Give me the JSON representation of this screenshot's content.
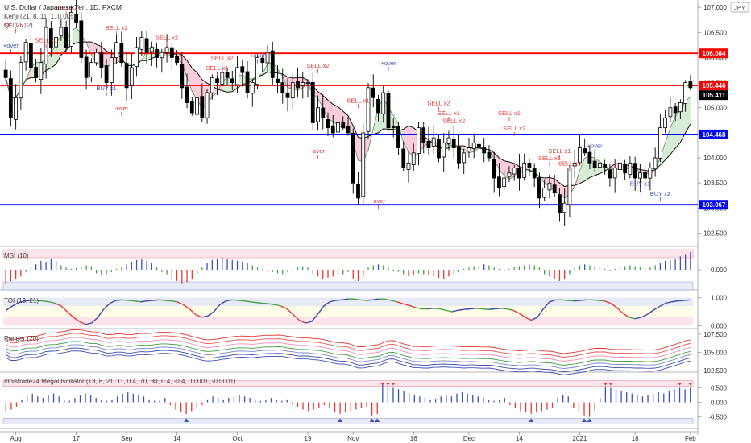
{
  "header": {
    "symbol_line": "U.S. Dollar / Japanese Yen, 1D, FXCM",
    "indicator_1": "Kenji (21, 8, 11, 1, 0.005)",
    "indicator_2": "QL (20, 2)",
    "currency_badge": "JPY"
  },
  "colors": {
    "up_candle": "#ffffff",
    "down_candle": "#000000",
    "resistance": "#ff0000",
    "support": "#0000ff",
    "sell_text": "#e53935",
    "buy_text": "#3f51b5",
    "price_badge": "#000000"
  },
  "chart_data": [
    {
      "type": "candlestick",
      "title": "U.S. Dollar / Japanese Yen, 1D, FXCM",
      "ylim": [
        102.3,
        107.05
      ],
      "y_ticks": [
        "107.000",
        "106.500",
        "106.000",
        "105.500",
        "105.000",
        "104.500",
        "104.000",
        "103.500",
        "103.000",
        "102.500"
      ],
      "x_ticks": [
        {
          "label": "Aug",
          "i": 2
        },
        {
          "label": "17",
          "i": 14
        },
        {
          "label": "Sep",
          "i": 24
        },
        {
          "label": "14",
          "i": 34
        },
        {
          "label": "Oct",
          "i": 46
        },
        {
          "label": "19",
          "i": 60
        },
        {
          "label": "Nov",
          "i": 69
        },
        {
          "label": "16",
          "i": 81
        },
        {
          "label": "Dec",
          "i": 92
        },
        {
          "label": "14",
          "i": 102
        },
        {
          "label": "2021",
          "i": 114
        },
        {
          "label": "18",
          "i": 125
        },
        {
          "label": "Feb",
          "i": 136
        }
      ],
      "horizontal_levels": [
        {
          "value": 106.084,
          "label": "106.084",
          "color": "#ff0000"
        },
        {
          "value": 105.446,
          "label": "105.446",
          "color": "#ff0000"
        },
        {
          "value": 104.468,
          "label": "104.468",
          "color": "#0000ff"
        },
        {
          "value": 103.067,
          "label": "103.067",
          "color": "#0000ff"
        }
      ],
      "last_price": "105.411",
      "closes": [
        105.6,
        104.8,
        105.2,
        105.9,
        106.3,
        105.8,
        105.6,
        105.9,
        106.6,
        106.2,
        106.4,
        106.6,
        106.2,
        106.9,
        106.7,
        106.0,
        105.6,
        105.9,
        106.1,
        105.8,
        105.5,
        106.0,
        106.3,
        105.9,
        105.4,
        105.8,
        106.2,
        106.4,
        106.1,
        106.2,
        106.0,
        106.1,
        106.2,
        106.0,
        105.9,
        105.4,
        105.1,
        104.9,
        105.2,
        104.8,
        105.3,
        105.6,
        105.5,
        105.7,
        105.6,
        105.5,
        105.8,
        105.7,
        105.3,
        105.5,
        106.0,
        105.9,
        106.1,
        105.6,
        105.5,
        105.3,
        105.2,
        105.5,
        105.4,
        105.5,
        105.5,
        104.7,
        105.0,
        104.8,
        104.6,
        104.5,
        104.7,
        104.6,
        104.5,
        103.5,
        103.2,
        104.5,
        105.4,
        105.2,
        104.9,
        105.3,
        104.6,
        104.6,
        104.2,
        103.8,
        103.9,
        104.1,
        104.6,
        104.3,
        104.2,
        104.4,
        104.0,
        104.3,
        104.4,
        104.2,
        103.9,
        104.1,
        104.2,
        104.3,
        104.2,
        104.1,
        104.0,
        103.6,
        103.4,
        103.6,
        103.7,
        103.8,
        103.6,
        103.9,
        103.8,
        103.6,
        103.2,
        103.4,
        103.5,
        103.3,
        102.9,
        103.1,
        103.8,
        103.9,
        104.2,
        104.1,
        103.9,
        103.8,
        103.9,
        103.8,
        103.6,
        103.8,
        103.9,
        103.7,
        103.9,
        103.6,
        103.7,
        103.6,
        103.8,
        104.0,
        104.6,
        104.8,
        105.0,
        104.9,
        105.1,
        105.5,
        105.4
      ]
    },
    {
      "type": "bar",
      "title": "MSI (10)",
      "ylim": [
        -0.45,
        0.45
      ],
      "y_ticks": [
        "0.000"
      ],
      "values": [
        -0.3,
        -0.25,
        -0.2,
        -0.15,
        -0.05,
        0.05,
        0.12,
        0.2,
        0.18,
        0.25,
        0.2,
        0.1,
        0.05,
        0.02,
        0.04,
        0.06,
        0.1,
        0.08,
        -0.08,
        -0.12,
        -0.1,
        -0.05,
        0.02,
        0.05,
        0.12,
        0.18,
        0.22,
        0.25,
        0.2,
        0.15,
        0.05,
        -0.05,
        -0.1,
        -0.2,
        -0.25,
        -0.3,
        -0.28,
        -0.2,
        -0.1,
        0.05,
        0.15,
        0.22,
        0.25,
        0.28,
        0.25,
        0.22,
        0.2,
        0.18,
        0.15,
        0.1,
        0.05,
        0.02,
        -0.02,
        -0.05,
        -0.08,
        -0.1,
        -0.05,
        0.02,
        0.05,
        0.08,
        0.05,
        -0.1,
        -0.15,
        -0.2,
        -0.18,
        -0.15,
        -0.12,
        -0.1,
        -0.05,
        -0.2,
        -0.25,
        -0.15,
        0.05,
        0.1,
        0.12,
        0.1,
        0.05,
        -0.02,
        -0.05,
        -0.1,
        -0.15,
        -0.12,
        -0.08,
        -0.1,
        -0.12,
        -0.15,
        -0.18,
        -0.2,
        -0.15,
        -0.1,
        -0.05,
        0.02,
        0.05,
        0.08,
        0.1,
        0.12,
        0.1,
        0.05,
        0.02,
        -0.02,
        0.02,
        0.05,
        0.08,
        0.1,
        0.12,
        0.1,
        0.05,
        -0.1,
        -0.15,
        -0.2,
        -0.25,
        -0.2,
        -0.1,
        0.05,
        0.1,
        0.12,
        0.1,
        0.08,
        0.05,
        0.02,
        -0.02,
        0.02,
        0.05,
        0.08,
        0.1,
        0.08,
        0.05,
        0.02,
        0.05,
        0.1,
        0.15,
        0.2,
        0.22,
        0.25,
        0.3,
        0.35,
        0.4
      ]
    },
    {
      "type": "line",
      "title": "TOI (13, 21)",
      "ylim": [
        -0.1,
        1.1
      ],
      "y_ticks": [
        "1.000",
        "0.000"
      ],
      "values": [
        0.55,
        0.7,
        0.82,
        0.88,
        0.9,
        0.9,
        0.88,
        0.85,
        0.8,
        0.7,
        0.5,
        0.3,
        0.15,
        0.05,
        0.1,
        0.3,
        0.6,
        0.8,
        0.9,
        0.92,
        0.9,
        0.88,
        0.85,
        0.88,
        0.9,
        0.92,
        0.9,
        0.88,
        0.85,
        0.75,
        0.6,
        0.4,
        0.3,
        0.35,
        0.5,
        0.75,
        0.88,
        0.92,
        0.9,
        0.88,
        0.85,
        0.82,
        0.8,
        0.78,
        0.75,
        0.7,
        0.6,
        0.4,
        0.2,
        0.1,
        0.15,
        0.4,
        0.7,
        0.85,
        0.9,
        0.92,
        0.95,
        0.95,
        0.92,
        0.9,
        0.92,
        0.95,
        0.95,
        0.9,
        0.85,
        0.78,
        0.72,
        0.65,
        0.6,
        0.6,
        0.62,
        0.6,
        0.55,
        0.5,
        0.55,
        0.58,
        0.6,
        0.62,
        0.6,
        0.58,
        0.6,
        0.62,
        0.6,
        0.55,
        0.45,
        0.3,
        0.2,
        0.3,
        0.6,
        0.85,
        0.92,
        0.92,
        0.9,
        0.88,
        0.9,
        0.92,
        0.92,
        0.9,
        0.88,
        0.8,
        0.65,
        0.45,
        0.3,
        0.25,
        0.3,
        0.4,
        0.55,
        0.68,
        0.8,
        0.85,
        0.88,
        0.9,
        0.92
      ]
    },
    {
      "type": "line",
      "title": "Ranger (20)",
      "ylim": [
        102.3,
        107.7
      ],
      "y_ticks": [
        "107.500",
        "105.000",
        "102.500"
      ],
      "series": [
        {
          "offset": 1.6,
          "color": "#e53935"
        },
        {
          "offset": 1.1,
          "color": "#ef5350"
        },
        {
          "offset": 0.55,
          "color": "#f48fb1"
        },
        {
          "offset": 0.0,
          "color": "#43a047"
        },
        {
          "offset": -0.45,
          "color": "#7986cb"
        },
        {
          "offset": -0.9,
          "color": "#3949ab"
        },
        {
          "offset": -1.3,
          "color": "#3f51b5"
        }
      ]
    },
    {
      "type": "bar",
      "title": "Idnistrade24 MegaOscillator (13, 8, 21, 11, 0.4, 70, 30, 0.4, -0.4, 0.0001, -0.0001)",
      "ylim": [
        -0.9,
        0.9
      ],
      "y_ticks": [
        "0.500",
        "0.000",
        "-0.500"
      ],
      "values": [
        -0.35,
        -0.25,
        -0.15,
        0.1,
        0.25,
        0.3,
        0.2,
        0.15,
        0.25,
        0.3,
        0.2,
        0.1,
        0.05,
        0.15,
        0.25,
        0.3,
        0.25,
        0.15,
        0.1,
        0.05,
        0.1,
        0.2,
        0.3,
        0.35,
        0.3,
        0.25,
        0.2,
        0.1,
        0.05,
        0.1,
        0.15,
        -0.1,
        -0.25,
        -0.35,
        -0.4,
        -0.3,
        -0.2,
        -0.1,
        0.1,
        0.2,
        0.15,
        0.1,
        0.15,
        0.2,
        0.25,
        0.2,
        0.15,
        0.1,
        0.05,
        0.1,
        0.15,
        0.1,
        0.05,
        0.1,
        -0.05,
        -0.15,
        -0.25,
        -0.3,
        -0.25,
        -0.2,
        -0.1,
        -0.2,
        -0.35,
        -0.4,
        -0.35,
        -0.3,
        -0.25,
        -0.2,
        -0.15,
        -0.45,
        -0.4,
        0.6,
        0.55,
        0.5,
        0.45,
        0.4,
        0.3,
        0.25,
        0.2,
        0.15,
        0.1,
        0.12,
        0.2,
        0.25,
        0.2,
        0.3,
        0.35,
        0.3,
        0.25,
        0.2,
        0.15,
        0.1,
        0.05,
        0.1,
        0.15,
        -0.1,
        -0.2,
        -0.3,
        -0.35,
        -0.4,
        -0.35,
        -0.3,
        -0.25,
        -0.2,
        0.15,
        0.25,
        0.2,
        -0.2,
        -0.35,
        -0.45,
        -0.5,
        -0.3,
        0.15,
        0.55,
        0.5,
        0.45,
        0.4,
        0.35,
        0.3,
        0.25,
        0.2,
        0.25,
        0.3,
        0.35,
        0.3,
        0.4,
        0.45,
        0.5,
        0.45,
        0.5
      ]
    }
  ],
  "signals": [
    {
      "text": "SELL x1",
      "i": 2,
      "price": 106.6,
      "kind": "sell"
    },
    {
      "text": "SELL x1",
      "i": 8,
      "price": 106.3,
      "kind": "sell"
    },
    {
      "text": "SELL x2",
      "i": 12,
      "price": 106.95,
      "kind": "sell"
    },
    {
      "text": "SELL x2",
      "i": 22,
      "price": 106.55,
      "kind": "sell"
    },
    {
      "text": "SELL x2",
      "i": 32,
      "price": 106.35,
      "kind": "sell"
    },
    {
      "text": "SELL x2",
      "i": 43,
      "price": 105.95,
      "kind": "sell"
    },
    {
      "text": "SELL x1",
      "i": 42,
      "price": 105.75,
      "kind": "sell"
    },
    {
      "text": "SELL x2",
      "i": 62,
      "price": 105.8,
      "kind": "sell"
    },
    {
      "text": "SELL x1",
      "i": 70,
      "price": 105.1,
      "kind": "sell"
    },
    {
      "text": "SELL x2",
      "i": 86,
      "price": 105.05,
      "kind": "sell"
    },
    {
      "text": "SELL x1",
      "i": 88,
      "price": 104.85,
      "kind": "sell"
    },
    {
      "text": "SELL x2",
      "i": 89,
      "price": 104.7,
      "kind": "sell"
    },
    {
      "text": "SELL x1",
      "i": 100,
      "price": 104.85,
      "kind": "sell"
    },
    {
      "text": "SELL x2",
      "i": 101,
      "price": 104.55,
      "kind": "sell"
    },
    {
      "text": "SELL x1",
      "i": 110,
      "price": 104.1,
      "kind": "sell"
    },
    {
      "text": "SELL x1",
      "i": 108,
      "price": 103.95,
      "kind": "sell"
    },
    {
      "text": "SELL x1",
      "i": 112,
      "price": 103.85,
      "kind": "sell"
    },
    {
      "text": "+over",
      "i": 1,
      "price": 106.2,
      "kind": "buy"
    },
    {
      "text": "+over",
      "i": 50,
      "price": 106.0,
      "kind": "buy"
    },
    {
      "text": "+over",
      "i": 76,
      "price": 105.85,
      "kind": "buy"
    },
    {
      "text": "+over",
      "i": 117,
      "price": 104.2,
      "kind": "buy"
    },
    {
      "text": "BUY x1",
      "i": 20,
      "price": 105.35,
      "kind": "buy"
    },
    {
      "text": "BUY x1",
      "i": 126,
      "price": 103.45,
      "kind": "buy"
    },
    {
      "text": "BUY x2",
      "i": 130,
      "price": 103.25,
      "kind": "buy"
    },
    {
      "text": "-over",
      "i": 23,
      "price": 104.95,
      "kind": "sell"
    },
    {
      "text": "-over",
      "i": 62,
      "price": 104.1,
      "kind": "sell"
    },
    {
      "text": "-over",
      "i": 74,
      "price": 103.1,
      "kind": "sell"
    }
  ]
}
